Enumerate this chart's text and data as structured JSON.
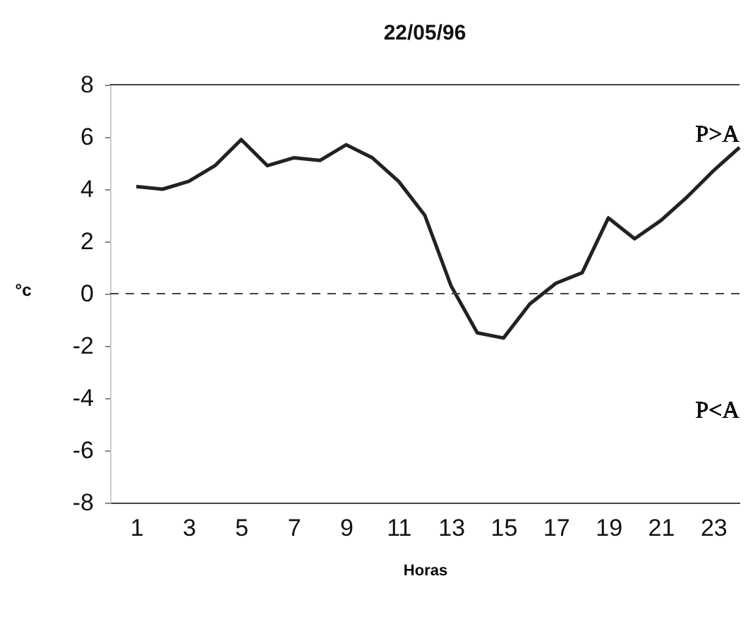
{
  "chart_data": {
    "type": "line",
    "title": "22/05/96",
    "xlabel": "Horas",
    "ylabel": "°c",
    "x": [
      1,
      2,
      3,
      4,
      5,
      6,
      7,
      8,
      9,
      10,
      11,
      12,
      13,
      14,
      15,
      16,
      17,
      18,
      19,
      20,
      21,
      22,
      23,
      24
    ],
    "series": [
      {
        "color": "#222222",
        "values": [
          4.1,
          4.0,
          4.3,
          4.9,
          5.9,
          4.9,
          5.2,
          5.1,
          5.7,
          5.2,
          4.3,
          3.0,
          0.3,
          -1.5,
          -1.7,
          -0.4,
          0.4,
          0.8,
          2.9,
          2.1,
          2.8,
          3.7,
          4.7,
          5.6
        ]
      }
    ],
    "xlim": [
      0,
      24
    ],
    "xticks": [
      1,
      3,
      5,
      7,
      9,
      11,
      13,
      15,
      17,
      19,
      21,
      23
    ],
    "ylim": [
      -8,
      8
    ],
    "yticks": [
      -8,
      -6,
      -4,
      -2,
      0,
      2,
      4,
      6,
      8
    ],
    "ref_lines": [
      {
        "axis": "y",
        "value": 0,
        "line_style": "dashed",
        "color": "#444444"
      },
      {
        "axis": "y",
        "value": 8,
        "line_style": "solid",
        "color": "#444444"
      }
    ],
    "annotations": [
      "P>A",
      "P<A"
    ],
    "grid": false,
    "marker": "none",
    "line_style": "solid"
  }
}
